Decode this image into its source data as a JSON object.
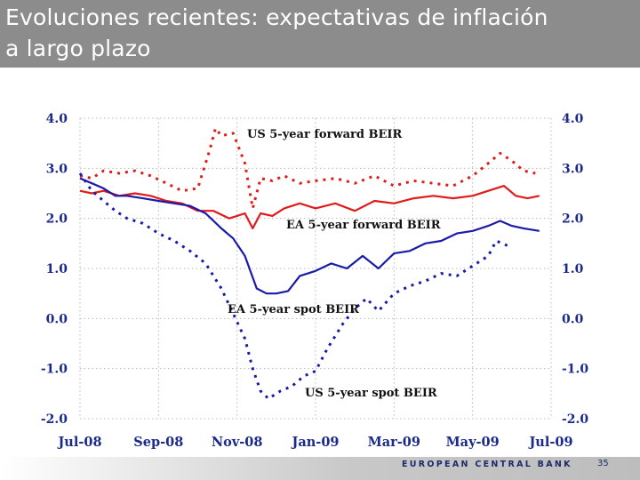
{
  "slide": {
    "title_line1": "Evoluciones recientes: expectativas de inflación",
    "title_line2": "a largo plazo",
    "footer_brand": "EUROPEAN CENTRAL BANK",
    "page_number": "35"
  },
  "colors": {
    "title_bar": "#8c8c8c",
    "us_series": "#e01b1b",
    "ea_series": "#1a1aa8",
    "axis_text": "#1b2a8a",
    "grid": "#b8b8b8"
  },
  "chart_data": {
    "type": "line",
    "title": "",
    "xlabel": "",
    "ylabel": "",
    "ylim": [
      -2.0,
      4.0
    ],
    "x_tick_labels": [
      "Jul-08",
      "Sep-08",
      "Nov-08",
      "Jan-09",
      "Mar-09",
      "May-09",
      "Jul-09"
    ],
    "y_ticks": [
      4.0,
      3.0,
      2.0,
      1.0,
      0.0,
      -1.0,
      -2.0
    ],
    "y_tick_labels": [
      "4.0",
      "3.0",
      "2.0",
      "1.0",
      "0.0",
      "-1.0",
      "-2.0"
    ],
    "grid": true,
    "x_unit": "months since Jul-08",
    "xlim": [
      0,
      12
    ],
    "annotations": [
      {
        "text": "US 5-year forward BEIR",
        "series": "US 5-year forward BEIR"
      },
      {
        "text": "EA 5-year forward BEIR",
        "series": "EA 5-year forward BEIR"
      },
      {
        "text": "EA 5-year spot BEIR",
        "series": "EA 5-year spot BEIR"
      },
      {
        "text": "US 5-year spot BEIR",
        "series": "US 5-year spot BEIR"
      }
    ],
    "series": [
      {
        "name": "US 5-year forward BEIR",
        "color": "#e01b1b",
        "style": "dotted",
        "x": [
          0,
          0.3,
          0.6,
          1.0,
          1.4,
          1.8,
          2.2,
          2.6,
          3.0,
          3.3,
          3.45,
          3.6,
          3.9,
          4.2,
          4.4,
          4.6,
          4.9,
          5.2,
          5.6,
          6.0,
          6.5,
          7.0,
          7.5,
          8.0,
          8.5,
          9.0,
          9.5,
          10.0,
          10.4,
          10.7,
          11.0,
          11.3,
          11.6
        ],
        "values": [
          2.85,
          2.8,
          2.95,
          2.9,
          2.95,
          2.85,
          2.7,
          2.55,
          2.6,
          3.35,
          3.8,
          3.65,
          3.7,
          3.1,
          2.2,
          2.8,
          2.75,
          2.85,
          2.7,
          2.75,
          2.8,
          2.7,
          2.85,
          2.65,
          2.75,
          2.7,
          2.65,
          2.85,
          3.1,
          3.3,
          3.15,
          2.95,
          2.9
        ]
      },
      {
        "name": "EA 5-year forward BEIR",
        "color": "#e01b1b",
        "style": "solid",
        "x": [
          0,
          0.3,
          0.6,
          1.0,
          1.4,
          1.8,
          2.2,
          2.6,
          3.0,
          3.4,
          3.8,
          4.0,
          4.2,
          4.4,
          4.6,
          4.9,
          5.2,
          5.6,
          6.0,
          6.5,
          7.0,
          7.5,
          8.0,
          8.5,
          9.0,
          9.5,
          10.0,
          10.4,
          10.8,
          11.1,
          11.4,
          11.7
        ],
        "values": [
          2.55,
          2.5,
          2.55,
          2.45,
          2.5,
          2.45,
          2.35,
          2.3,
          2.15,
          2.15,
          2.0,
          2.05,
          2.1,
          1.8,
          2.1,
          2.05,
          2.2,
          2.3,
          2.2,
          2.3,
          2.15,
          2.35,
          2.3,
          2.4,
          2.45,
          2.4,
          2.45,
          2.55,
          2.65,
          2.45,
          2.4,
          2.45
        ]
      },
      {
        "name": "EA 5-year spot BEIR",
        "color": "#1a1aa8",
        "style": "solid",
        "x": [
          0,
          0.3,
          0.6,
          0.9,
          1.2,
          1.6,
          2.0,
          2.4,
          2.8,
          3.2,
          3.6,
          3.9,
          4.2,
          4.5,
          4.75,
          5.0,
          5.3,
          5.6,
          6.0,
          6.4,
          6.8,
          7.2,
          7.6,
          8.0,
          8.4,
          8.8,
          9.2,
          9.6,
          10.0,
          10.4,
          10.7,
          11.0,
          11.3,
          11.7
        ],
        "values": [
          2.8,
          2.7,
          2.6,
          2.45,
          2.45,
          2.4,
          2.35,
          2.3,
          2.25,
          2.1,
          1.8,
          1.6,
          1.25,
          0.6,
          0.5,
          0.5,
          0.55,
          0.85,
          0.95,
          1.1,
          1.0,
          1.25,
          1.0,
          1.3,
          1.35,
          1.5,
          1.55,
          1.7,
          1.75,
          1.85,
          1.95,
          1.85,
          1.8,
          1.75
        ]
      },
      {
        "name": "US 5-year spot BEIR",
        "color": "#1a1aa8",
        "style": "dotted",
        "x": [
          0,
          0.3,
          0.6,
          0.9,
          1.2,
          1.6,
          2.0,
          2.4,
          2.8,
          3.2,
          3.6,
          3.9,
          4.2,
          4.4,
          4.6,
          4.8,
          5.1,
          5.4,
          5.7,
          6.0,
          6.3,
          6.7,
          7.0,
          7.3,
          7.6,
          8.0,
          8.4,
          8.8,
          9.2,
          9.6,
          10.0,
          10.4,
          10.6,
          10.9
        ],
        "values": [
          2.9,
          2.55,
          2.35,
          2.15,
          2.0,
          1.9,
          1.7,
          1.55,
          1.35,
          1.1,
          0.6,
          0.1,
          -0.4,
          -1.0,
          -1.45,
          -1.6,
          -1.45,
          -1.35,
          -1.15,
          -1.05,
          -0.6,
          -0.1,
          0.2,
          0.4,
          0.15,
          0.5,
          0.65,
          0.75,
          0.9,
          0.85,
          1.05,
          1.25,
          1.55,
          1.45
        ]
      }
    ]
  }
}
